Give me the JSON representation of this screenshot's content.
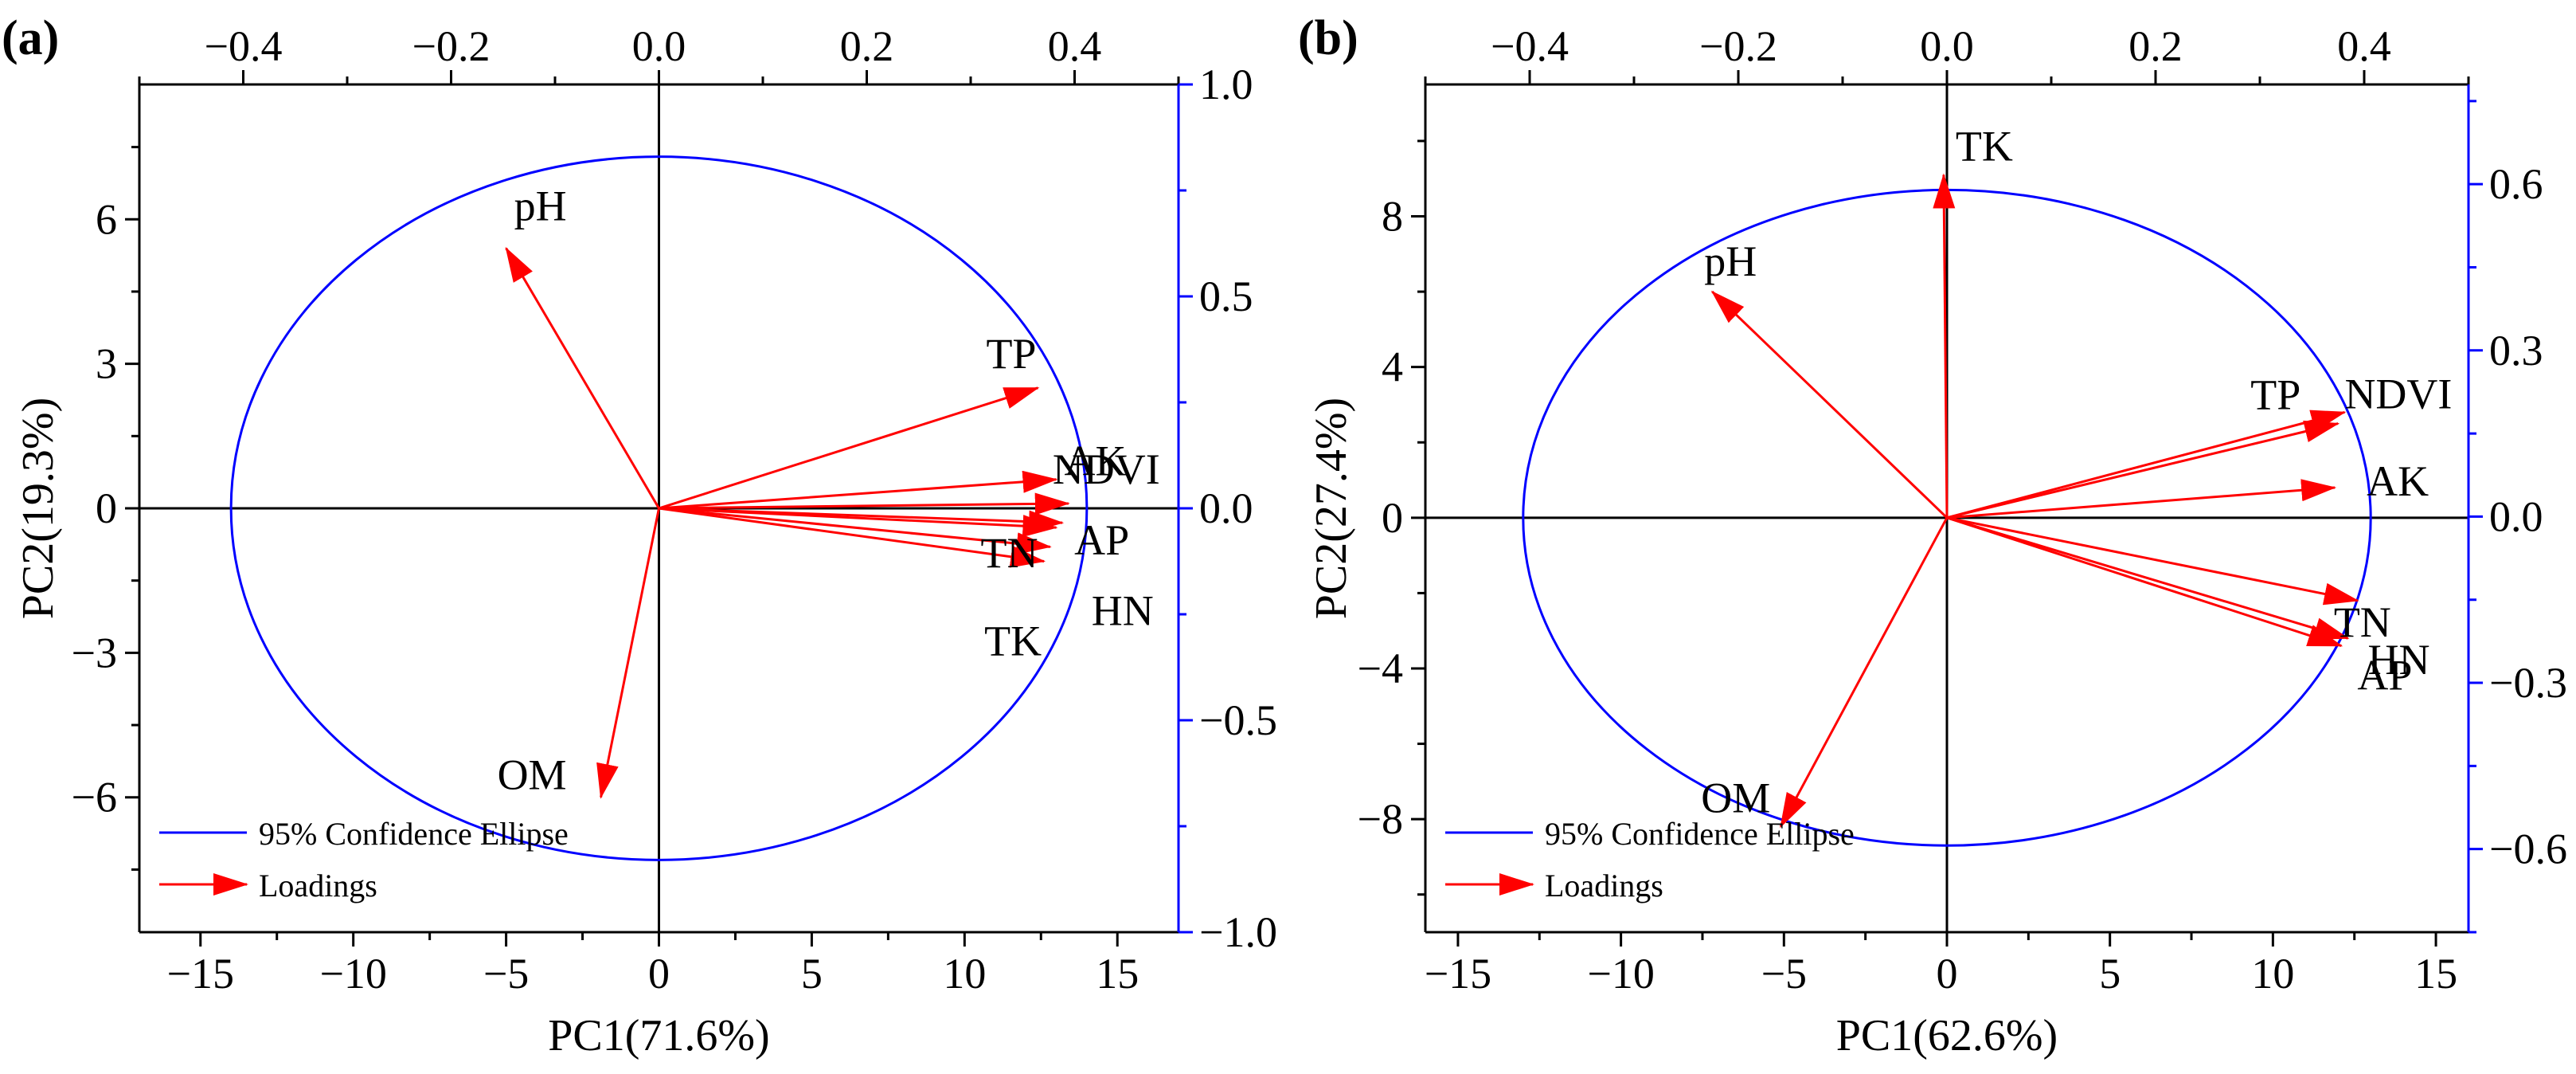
{
  "figure": {
    "background": "#ffffff"
  },
  "colors": {
    "axis_right": "#0000ff",
    "ellipse": "#0000ff",
    "loading": "#ff0000",
    "axis": "#000000"
  },
  "chart_data": [
    {
      "type": "biplot",
      "panel_label": "(a)",
      "xlabel": "PC1(71.6%)",
      "ylabel": "PC2(19.3%)",
      "xlim": [
        -17,
        17
      ],
      "ylim": [
        -8.8,
        8.8
      ],
      "x_ticks": [
        -15,
        -10,
        -5,
        0,
        5,
        10,
        15
      ],
      "x_tick_labels": [
        "−15",
        "−10",
        "−5",
        "0",
        "5",
        "10",
        "15"
      ],
      "y_ticks": [
        -6,
        -3,
        0,
        3,
        6
      ],
      "y_tick_labels": [
        "−6",
        "−3",
        "0",
        "3",
        "6"
      ],
      "top_xlim": [
        -0.5,
        0.5
      ],
      "top_ticks": [
        -0.4,
        -0.2,
        0.0,
        0.2,
        0.4
      ],
      "top_tick_labels": [
        "−0.4",
        "−0.2",
        "0.0",
        "0.2",
        "0.4"
      ],
      "right_ylim": [
        -1.0,
        1.0
      ],
      "right_ticks": [
        -1.0,
        -0.5,
        0.0,
        0.5,
        1.0
      ],
      "right_tick_labels": [
        "−1.0",
        "−0.5",
        "0.0",
        "0.5",
        "1.0"
      ],
      "ellipse": {
        "cx": 0,
        "cy": 0,
        "rx": 14,
        "ry": 7.3
      },
      "loadings": [
        {
          "name": "pH",
          "x": -5.0,
          "y": 5.4
        },
        {
          "name": "TP",
          "x": 12.4,
          "y": 2.5
        },
        {
          "name": "NDVI",
          "x": 13.4,
          "y": 0.1
        },
        {
          "name": "AK",
          "x": 13.0,
          "y": 0.6
        },
        {
          "name": "AP",
          "x": 13.2,
          "y": -0.3
        },
        {
          "name": "TN",
          "x": 13.0,
          "y": -0.4
        },
        {
          "name": "TK",
          "x": 12.6,
          "y": -1.1
        },
        {
          "name": "HN",
          "x": 12.8,
          "y": -0.8
        },
        {
          "name": "OM",
          "x": -1.9,
          "y": -6.0
        }
      ],
      "legend": {
        "ellipse_label": "95% Confidence Ellipse",
        "loadings_label": "Loadings",
        "position": "bottom-left"
      }
    },
    {
      "type": "biplot",
      "panel_label": "(b)",
      "xlabel": "PC1(62.6%)",
      "ylabel": "PC2(27.4%)",
      "xlim": [
        -16,
        16
      ],
      "ylim": [
        -11,
        11.5
      ],
      "x_ticks": [
        -15,
        -10,
        -5,
        0,
        5,
        10,
        15
      ],
      "x_tick_labels": [
        "−15",
        "−10",
        "−5",
        "0",
        "5",
        "10",
        "15"
      ],
      "y_ticks": [
        -8,
        -4,
        0,
        4,
        8
      ],
      "y_tick_labels": [
        "−8",
        "−4",
        "0",
        "4",
        "8"
      ],
      "top_xlim": [
        -0.5,
        0.5
      ],
      "top_ticks": [
        -0.4,
        -0.2,
        0.0,
        0.2,
        0.4
      ],
      "top_tick_labels": [
        "−0.4",
        "−0.2",
        "0.0",
        "0.2",
        "0.4"
      ],
      "right_ylim": [
        -0.75,
        0.78
      ],
      "right_ticks": [
        -0.6,
        -0.3,
        0.0,
        0.3,
        0.6
      ],
      "right_tick_labels": [
        "−0.6",
        "−0.3",
        "0.0",
        "0.3",
        "0.6"
      ],
      "ellipse": {
        "cx": 0,
        "cy": 0,
        "rx": 13,
        "ry": 8.7
      },
      "loadings": [
        {
          "name": "TK",
          "x": -0.1,
          "y": 9.1
        },
        {
          "name": "pH",
          "x": -7.2,
          "y": 6.0
        },
        {
          "name": "TP",
          "x": 12.0,
          "y": 2.5
        },
        {
          "name": "NDVI",
          "x": 12.2,
          "y": 2.8
        },
        {
          "name": "AK",
          "x": 11.9,
          "y": 0.8
        },
        {
          "name": "TN",
          "x": 12.6,
          "y": -2.2
        },
        {
          "name": "HN",
          "x": 12.3,
          "y": -3.2
        },
        {
          "name": "AP",
          "x": 12.1,
          "y": -3.4
        },
        {
          "name": "OM",
          "x": -5.1,
          "y": -8.2
        }
      ],
      "legend": {
        "ellipse_label": "95% Confidence Ellipse",
        "loadings_label": "Loadings",
        "position": "bottom-left"
      }
    }
  ]
}
